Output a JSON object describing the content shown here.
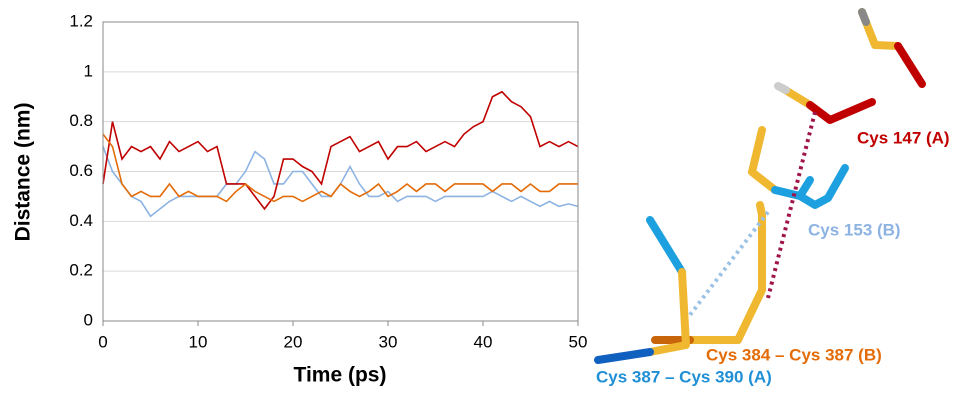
{
  "chart_data": {
    "type": "line",
    "xlabel": "Time (ps)",
    "ylabel": "Distance (nm)",
    "x": [
      0,
      1,
      2,
      3,
      4,
      5,
      6,
      7,
      8,
      9,
      10,
      11,
      12,
      13,
      14,
      15,
      16,
      17,
      18,
      19,
      20,
      21,
      22,
      23,
      24,
      25,
      26,
      27,
      28,
      29,
      30,
      31,
      32,
      33,
      34,
      35,
      36,
      37,
      38,
      39,
      40,
      41,
      42,
      43,
      44,
      45,
      46,
      47,
      48,
      49,
      50
    ],
    "series": [
      {
        "color": "#8db3e2",
        "values": [
          0.7,
          0.6,
          0.55,
          0.5,
          0.48,
          0.42,
          0.45,
          0.48,
          0.5,
          0.5,
          0.5,
          0.5,
          0.5,
          0.55,
          0.55,
          0.6,
          0.68,
          0.65,
          0.55,
          0.55,
          0.6,
          0.6,
          0.55,
          0.5,
          0.5,
          0.55,
          0.62,
          0.55,
          0.5,
          0.5,
          0.52,
          0.48,
          0.5,
          0.5,
          0.5,
          0.48,
          0.5,
          0.5,
          0.5,
          0.5,
          0.5,
          0.52,
          0.5,
          0.48,
          0.5,
          0.48,
          0.46,
          0.48,
          0.46,
          0.47,
          0.46
        ]
      },
      {
        "color": "#c00000",
        "values": [
          0.55,
          0.8,
          0.65,
          0.7,
          0.68,
          0.7,
          0.65,
          0.72,
          0.68,
          0.7,
          0.72,
          0.68,
          0.7,
          0.55,
          0.55,
          0.55,
          0.5,
          0.45,
          0.5,
          0.65,
          0.65,
          0.62,
          0.6,
          0.55,
          0.7,
          0.72,
          0.74,
          0.68,
          0.7,
          0.72,
          0.65,
          0.7,
          0.7,
          0.72,
          0.68,
          0.7,
          0.72,
          0.7,
          0.75,
          0.78,
          0.8,
          0.9,
          0.92,
          0.88,
          0.86,
          0.82,
          0.7,
          0.72,
          0.7,
          0.72,
          0.7
        ]
      },
      {
        "color": "#e36c09",
        "values": [
          0.75,
          0.7,
          0.55,
          0.5,
          0.52,
          0.5,
          0.5,
          0.55,
          0.5,
          0.52,
          0.5,
          0.5,
          0.5,
          0.48,
          0.52,
          0.55,
          0.52,
          0.5,
          0.48,
          0.5,
          0.5,
          0.48,
          0.5,
          0.52,
          0.5,
          0.55,
          0.52,
          0.5,
          0.52,
          0.55,
          0.5,
          0.52,
          0.55,
          0.52,
          0.55,
          0.55,
          0.52,
          0.55,
          0.55,
          0.55,
          0.55,
          0.52,
          0.55,
          0.55,
          0.52,
          0.55,
          0.52,
          0.52,
          0.55,
          0.55,
          0.55
        ]
      }
    ],
    "xlim": [
      0,
      50
    ],
    "xticks": [
      0,
      10,
      20,
      30,
      40,
      50
    ],
    "ylim": [
      0,
      1.2
    ],
    "yticks": [
      0,
      0.2,
      0.4,
      0.6,
      0.8,
      1,
      1.2
    ],
    "grid": true
  },
  "structure_labels": [
    {
      "text": "Cys 147 (A)",
      "color": "#c00000"
    },
    {
      "text": "Cys 153 (B)",
      "color": "#8db3e2"
    },
    {
      "text": "Cys 384 – Cys 387 (B)",
      "color": "#e36c09"
    },
    {
      "text": "Cys 387 – Cys 390 (A)",
      "color": "#1f8fd6"
    }
  ]
}
